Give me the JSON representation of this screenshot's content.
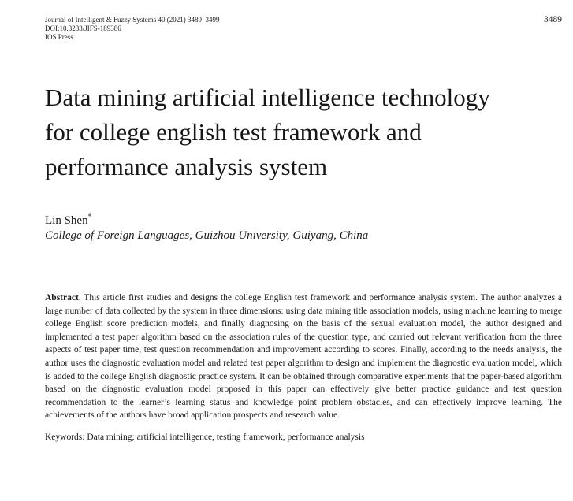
{
  "page": {
    "background": "#ffffff",
    "text_color": "#1c1c1c"
  },
  "header": {
    "journal_line": "Journal of Intelligent & Fuzzy Systems 40 (2021) 3489–3499",
    "doi_line": "DOI:10.3233/JIFS-189386",
    "publisher": "IOS Press",
    "page_number": "3489"
  },
  "article": {
    "title": "Data mining artificial intelligence technology for college english test framework and performance analysis system",
    "author": {
      "name": "Lin Shen",
      "marker": "*"
    },
    "affiliation": "College of Foreign Languages, Guizhou University, Guiyang, China"
  },
  "abstract": {
    "label": "Abstract",
    "text": ". This article first studies and designs the college English test framework and performance analysis system. The author analyzes a large number of data collected by the system in three dimensions: using data mining title association models, using machine learning to merge college English score prediction models, and finally diagnosing on the basis of the sexual evaluation model, the author designed and implemented a test paper algorithm based on the association rules of the question type, and carried out relevant verification from the three aspects of test paper time, test question recommendation and improvement according to scores. Finally, according to the needs analysis, the author uses the diagnostic evaluation model and related test paper algorithm to design and implement the diagnostic evaluation model, which is added to the college English diagnostic practice system. It can be obtained through comparative experiments that the paper-based algorithm based on the diagnostic evaluation model proposed in this paper can effectively give better practice guidance and test question recommendation to the learner’s learning status and knowledge point problem obstacles, and can effectively improve learning. The achievements of the authors have broad application prospects and research value."
  },
  "keywords": {
    "label": "Keywords:",
    "text": "Data mining; artificial intelligence, testing framework, performance analysis"
  }
}
